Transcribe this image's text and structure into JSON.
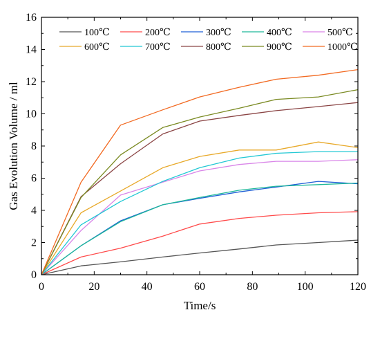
{
  "chart_data": {
    "type": "line",
    "title": "",
    "xlabel": "Time/s",
    "ylabel": "Gas Evolution Volume / ml",
    "xlim": [
      0,
      120
    ],
    "ylim": [
      0,
      16
    ],
    "xticks": [
      0,
      20,
      40,
      60,
      80,
      100,
      120
    ],
    "yticks": [
      0,
      2,
      4,
      6,
      8,
      10,
      12,
      14,
      16
    ],
    "grid": false,
    "legend_position": "top",
    "x": [
      0,
      15,
      30,
      46,
      60,
      75,
      89,
      105,
      120
    ],
    "series": [
      {
        "name": "100℃",
        "color": "#555555",
        "values": [
          0,
          0.55,
          0.8,
          1.1,
          1.35,
          1.6,
          1.85,
          2.0,
          2.15
        ]
      },
      {
        "name": "200℃",
        "color": "#ff4a4a",
        "values": [
          0,
          1.1,
          1.65,
          2.4,
          3.15,
          3.5,
          3.7,
          3.85,
          3.92
        ]
      },
      {
        "name": "300℃",
        "color": "#1f5fd6",
        "values": [
          0,
          1.8,
          3.35,
          4.35,
          4.75,
          5.15,
          5.45,
          5.8,
          5.65
        ]
      },
      {
        "name": "400℃",
        "color": "#1fb89a",
        "values": [
          0,
          1.8,
          3.3,
          4.35,
          4.8,
          5.25,
          5.5,
          5.6,
          5.7
        ]
      },
      {
        "name": "500℃",
        "color": "#d985e8",
        "values": [
          0,
          2.75,
          4.95,
          5.75,
          6.45,
          6.85,
          7.05,
          7.05,
          7.15
        ]
      },
      {
        "name": "600℃",
        "color": "#e8a92a",
        "values": [
          0,
          3.85,
          5.2,
          6.65,
          7.35,
          7.75,
          7.75,
          8.25,
          7.9
        ]
      },
      {
        "name": "700℃",
        "color": "#22c8d4",
        "values": [
          0,
          3.1,
          4.55,
          5.8,
          6.65,
          7.25,
          7.55,
          7.65,
          7.65
        ]
      },
      {
        "name": "800℃",
        "color": "#8a4444",
        "values": [
          0,
          4.85,
          6.9,
          8.75,
          9.55,
          9.9,
          10.2,
          10.45,
          10.7
        ]
      },
      {
        "name": "900℃",
        "color": "#7a8a22",
        "values": [
          0,
          4.8,
          7.45,
          9.15,
          9.8,
          10.35,
          10.9,
          11.05,
          11.5
        ]
      },
      {
        "name": "1000℃",
        "color": "#f26a22",
        "values": [
          0,
          5.75,
          9.3,
          10.25,
          11.05,
          11.65,
          12.15,
          12.4,
          12.75
        ]
      }
    ]
  }
}
